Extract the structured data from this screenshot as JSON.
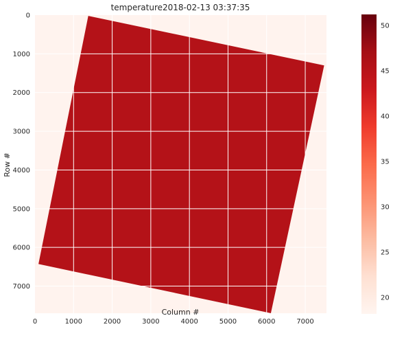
{
  "chart_data": {
    "type": "heatmap",
    "title": "temperature2018-02-13 03:37:35",
    "xlabel": "Column #",
    "ylabel": "Row #",
    "xlim": [
      0,
      7550
    ],
    "ylim": [
      7700,
      0
    ],
    "xticks": [
      0,
      1000,
      2000,
      3000,
      4000,
      5000,
      6000,
      7000
    ],
    "yticks": [
      0,
      1000,
      2000,
      3000,
      4000,
      5000,
      6000,
      7000
    ],
    "grid": true,
    "scene_footprint": {
      "description_values_in_data_units": true,
      "corners": [
        {
          "col": 1380,
          "row": 20
        },
        {
          "col": 7490,
          "row": 1300
        },
        {
          "col": 6110,
          "row": 7700
        },
        {
          "col": 90,
          "row": 6430
        }
      ],
      "value_inside": 45.5,
      "value_outside": 18.5
    },
    "colorbar": {
      "colormap": "Reds",
      "min": 18.2,
      "max": 51.2,
      "ticks": [
        20,
        25,
        30,
        35,
        40,
        45,
        50
      ],
      "colors": [
        "#fff5f0",
        "#fee0d2",
        "#fcbba1",
        "#fc9272",
        "#fb6a4a",
        "#ef3b2c",
        "#cb181d",
        "#a50f15",
        "#67000d"
      ]
    }
  }
}
